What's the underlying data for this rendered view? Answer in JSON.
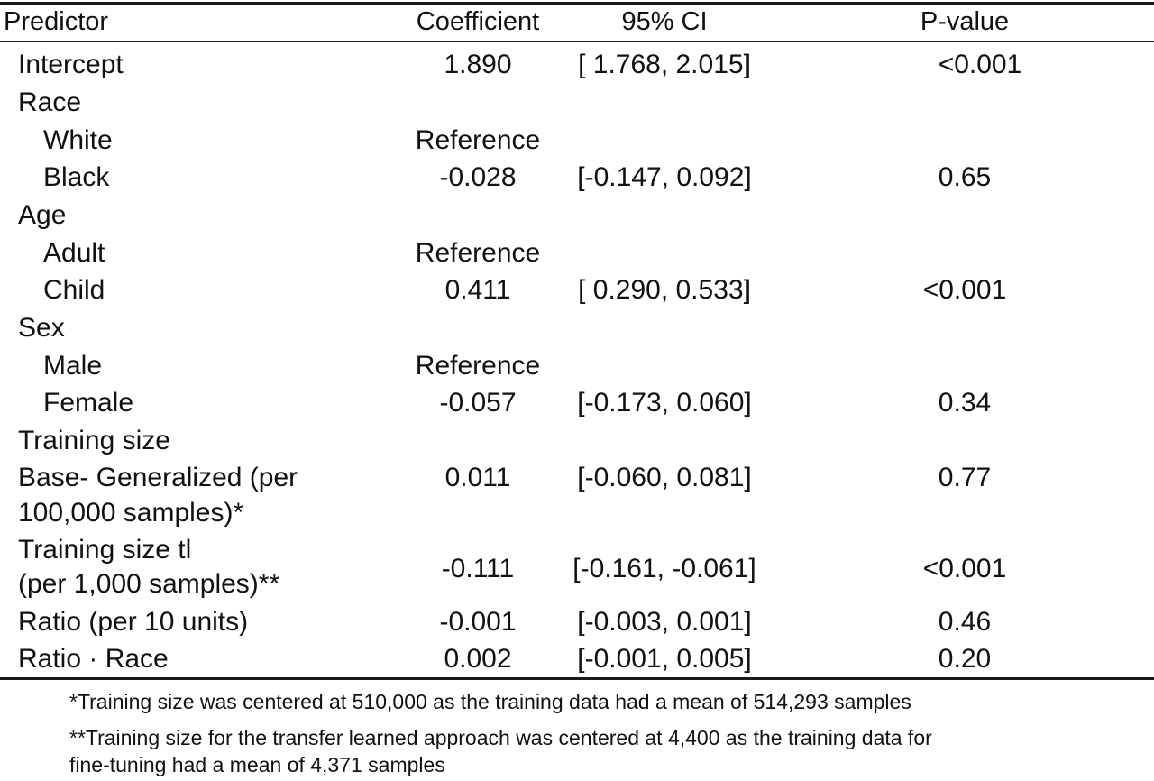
{
  "table": {
    "headers": {
      "predictor": "Predictor",
      "coefficient": "Coefficient",
      "ci": "95% CI",
      "pvalue": "P-value"
    },
    "rows": [
      {
        "predictor": "Intercept",
        "coefficient": "1.890",
        "ci": "[ 1.768, 2.015]",
        "pvalue": "<0.001"
      },
      {
        "predictor": "Race",
        "coefficient": "",
        "ci": "",
        "pvalue": ""
      },
      {
        "predictor": "White",
        "coefficient": "Reference",
        "ci": "",
        "pvalue": ""
      },
      {
        "predictor": "Black",
        "coefficient": "-0.028",
        "ci": "[-0.147, 0.092]",
        "pvalue": "0.65"
      },
      {
        "predictor": "Age",
        "coefficient": "",
        "ci": "",
        "pvalue": ""
      },
      {
        "predictor": "Adult",
        "coefficient": "Reference",
        "ci": "",
        "pvalue": ""
      },
      {
        "predictor": "Child",
        "coefficient": "0.411",
        "ci": "[ 0.290, 0.533]",
        "pvalue": "<0.001"
      },
      {
        "predictor": "Sex",
        "coefficient": "",
        "ci": "",
        "pvalue": ""
      },
      {
        "predictor": "Male",
        "coefficient": "Reference",
        "ci": "",
        "pvalue": ""
      },
      {
        "predictor": "Female",
        "coefficient": "-0.057",
        "ci": "[-0.173, 0.060]",
        "pvalue": "0.34"
      },
      {
        "predictor": "Training size",
        "coefficient": "",
        "ci": "",
        "pvalue": ""
      },
      {
        "predictor": "Base- Generalized (per",
        "predictor_line2": "100,000 samples)*",
        "coefficient": "0.011",
        "ci": "[-0.060, 0.081]",
        "pvalue": "0.77"
      },
      {
        "predictor": "Training size tl",
        "predictor_line2": "(per 1,000 samples)**",
        "coefficient": "-0.111",
        "ci": "[-0.161, -0.061]",
        "pvalue": "<0.001"
      },
      {
        "predictor": "Ratio (per 10 units)",
        "coefficient": "-0.001",
        "ci": "[-0.003, 0.001]",
        "pvalue": "0.46"
      },
      {
        "predictor": "Ratio · Race",
        "coefficient": "0.002",
        "ci": "[-0.001, 0.005]",
        "pvalue": "0.20"
      }
    ]
  },
  "footnotes": {
    "note1": "*Training size was centered at 510,000 as the training data had a mean of 514,293 samples",
    "note2_line1": "**Training size for the transfer learned approach was centered at 4,400 as the training data for",
    "note2_line2": "fine-tuning had a mean of 4,371 samples"
  }
}
